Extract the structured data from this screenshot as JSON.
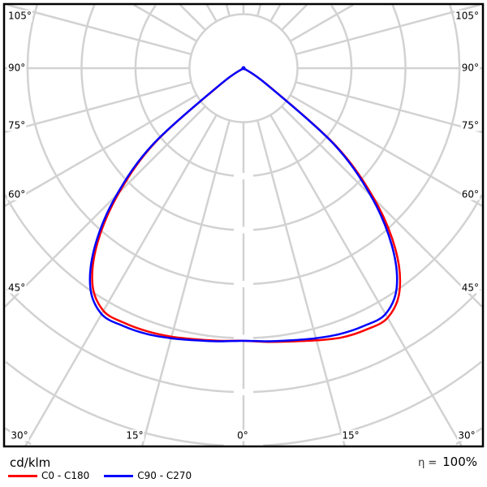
{
  "chart_data": {
    "type": "polar",
    "unit_label": "cd/klm",
    "angle_labels": {
      "left": [
        "105°",
        "90°",
        "75°",
        "60°",
        "45°"
      ],
      "right": [
        "105°",
        "90°",
        "75°",
        "60°",
        "45°"
      ],
      "bottom": [
        "30°",
        "15°",
        "0°",
        "15°",
        "30°"
      ]
    },
    "angle_ticks": [
      105,
      90,
      75,
      60,
      45,
      30,
      15,
      0
    ],
    "grid": true,
    "radial_step_deg": 15,
    "ring_count": 9,
    "angles_deg": [
      0,
      5,
      10,
      15,
      20,
      25,
      30,
      35,
      40,
      45,
      50,
      55,
      57
    ],
    "series": [
      {
        "name": "C0 - C180",
        "color": "#ff0000",
        "right_side": [
          5.05,
          5.09,
          5.14,
          5.22,
          5.31,
          5.35,
          5.34,
          5.04,
          4.38,
          3.42,
          2.22,
          0.55,
          0
        ],
        "left_side": [
          5.05,
          5.07,
          5.1,
          5.15,
          5.19,
          5.21,
          5.19,
          4.88,
          4.2,
          3.26,
          2.12,
          0.5,
          0
        ]
      },
      {
        "name": "C90 - C270",
        "color": "#0000ff",
        "right_side": [
          5.05,
          5.08,
          5.12,
          5.18,
          5.24,
          5.27,
          5.26,
          4.95,
          4.27,
          3.33,
          2.17,
          0.52,
          0
        ],
        "left_side": [
          5.05,
          5.08,
          5.12,
          5.18,
          5.24,
          5.27,
          5.26,
          4.95,
          4.27,
          3.33,
          2.17,
          0.52,
          0
        ]
      }
    ],
    "efficiency": {
      "symbol": "η =",
      "value": "100%"
    },
    "legend_placement": "bottom-left"
  }
}
